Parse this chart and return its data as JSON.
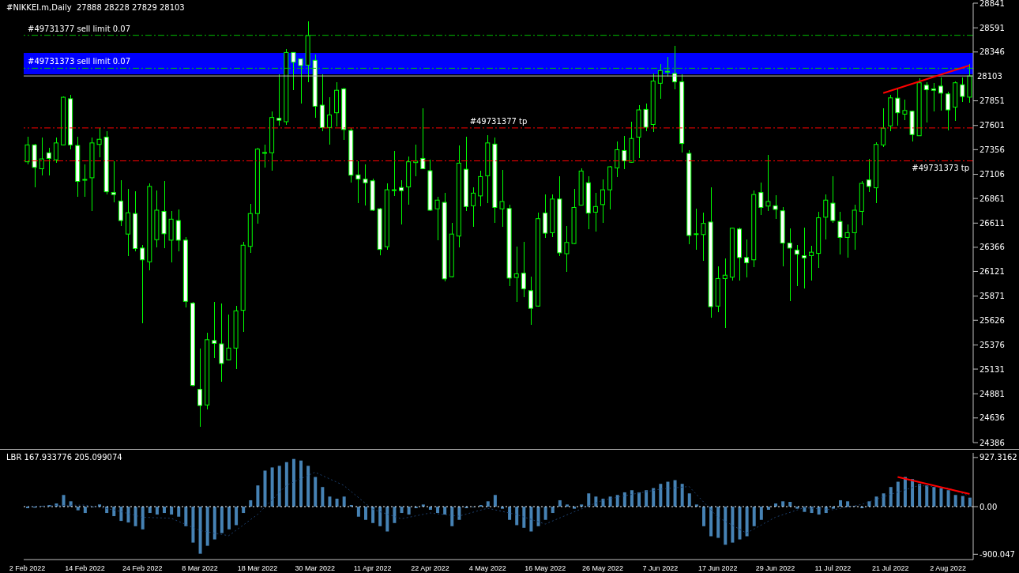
{
  "chart_data": [
    {
      "type": "candlestick",
      "title": "#NIKKEI.m,Daily  27888 28228 27829 28103",
      "color": "#00ff00",
      "tick_labels": "y",
      "categories": [
        null,
        null,
        null,
        null,
        null,
        null,
        null,
        null,
        null,
        null,
        null,
        null,
        null,
        null,
        null,
        null,
        null,
        null,
        null,
        null,
        null,
        null,
        null,
        null,
        null,
        null,
        null,
        null,
        null,
        null,
        null,
        null,
        null,
        null,
        null,
        null,
        null,
        null,
        null,
        null,
        null,
        null,
        null,
        null,
        null,
        null,
        null,
        null,
        null,
        null,
        null,
        null,
        null,
        null,
        null,
        null,
        null,
        null,
        null,
        null,
        null,
        null,
        null,
        null,
        null,
        null,
        null,
        null,
        null,
        null,
        null,
        null,
        null,
        null,
        null,
        null,
        null,
        null,
        null,
        null,
        null,
        null,
        null,
        null,
        null,
        null,
        null,
        null,
        null,
        null,
        null,
        null,
        null,
        null,
        null,
        null,
        null,
        null,
        null,
        null,
        null,
        null,
        null,
        null,
        null,
        null,
        null,
        null,
        null,
        null,
        null,
        null,
        null,
        null,
        null,
        null,
        null,
        null,
        null,
        null,
        null,
        null,
        null,
        null,
        null,
        null,
        null,
        null,
        null,
        null,
        null,
        null
      ],
      "ohlc": [
        [
          27233,
          27489,
          27205,
          27404
        ],
        [
          27404,
          27418,
          26978,
          27176
        ],
        [
          27162,
          27475,
          27091,
          27262
        ],
        [
          27324,
          27375,
          27097,
          27267
        ],
        [
          27253,
          27480,
          27225,
          27424
        ],
        [
          27404,
          27892,
          27398,
          27887
        ],
        [
          27872,
          27909,
          27361,
          27404
        ],
        [
          27398,
          27489,
          26878,
          27034
        ],
        [
          27054,
          27205,
          26878,
          27054
        ],
        [
          27071,
          27475,
          26736,
          27424
        ],
        [
          27409,
          27574,
          27276,
          27461
        ],
        [
          27483,
          27546,
          26901,
          26929
        ],
        [
          26921,
          27239,
          26821,
          26901
        ],
        [
          26835,
          27049,
          26580,
          26637
        ],
        [
          26500,
          26955,
          26273,
          26716
        ],
        [
          26708,
          26935,
          26324,
          26353
        ],
        [
          26358,
          26387,
          25594,
          26239
        ],
        [
          26219,
          27012,
          26131,
          26983
        ],
        [
          26443,
          26941,
          26367,
          26742
        ],
        [
          26730,
          27040,
          26358,
          26503
        ],
        [
          26438,
          26730,
          26216,
          26651
        ],
        [
          26637,
          26750,
          26324,
          26438
        ],
        [
          26438,
          26466,
          25756,
          25818
        ],
        [
          25799,
          25810,
          24955,
          24966
        ],
        [
          24926,
          25338,
          24548,
          24762
        ],
        [
          24767,
          25500,
          24719,
          25429
        ],
        [
          25421,
          25813,
          25245,
          25392
        ],
        [
          25387,
          25799,
          25003,
          25188
        ],
        [
          25225,
          25685,
          25216,
          25344
        ],
        [
          25344,
          25770,
          25131,
          25722
        ],
        [
          25727,
          26424,
          25506,
          26387
        ],
        [
          26375,
          26807,
          26310,
          26708
        ],
        [
          26708,
          27375,
          26608,
          27361
        ],
        [
          27327,
          27404,
          27176,
          27327
        ],
        [
          27324,
          27745,
          27142,
          27682
        ],
        [
          27674,
          28120,
          27603,
          27654
        ],
        [
          27639,
          28375,
          27611,
          28341
        ],
        [
          28341,
          28347,
          27958,
          28242
        ],
        [
          28276,
          28284,
          27824,
          28208
        ],
        [
          28213,
          28654,
          28043,
          28512
        ],
        [
          28262,
          28318,
          27682,
          27796
        ],
        [
          27807,
          28120,
          27546,
          27580
        ],
        [
          27580,
          27887,
          27409,
          27708
        ],
        [
          27730,
          28037,
          27588,
          27958
        ],
        [
          27972,
          27986,
          27455,
          27560
        ],
        [
          27551,
          27574,
          27020,
          27097
        ],
        [
          27100,
          27239,
          26816,
          27057
        ],
        [
          27057,
          27210,
          26793,
          27020
        ],
        [
          27040,
          27063,
          26736,
          26742
        ],
        [
          26756,
          26764,
          26281,
          26344
        ],
        [
          26372,
          27012,
          26338,
          26949
        ],
        [
          26949,
          27341,
          26884,
          26949
        ],
        [
          26972,
          27049,
          26600,
          26941
        ],
        [
          26978,
          27290,
          26799,
          27233
        ],
        [
          27225,
          27409,
          27085,
          27240
        ],
        [
          27267,
          27773,
          27157,
          27162
        ],
        [
          27142,
          27256,
          26730,
          26742
        ],
        [
          26756,
          26878,
          26438,
          26844
        ],
        [
          26821,
          26921,
          26017,
          26046
        ],
        [
          26068,
          26614,
          26063,
          26500
        ],
        [
          26480,
          27398,
          26367,
          27219
        ],
        [
          27157,
          27489,
          26730,
          26779
        ],
        [
          26787,
          26978,
          26574,
          26915
        ],
        [
          26887,
          27139,
          26779,
          27083
        ],
        [
          27091,
          27503,
          26816,
          27424
        ],
        [
          27412,
          27480,
          26614,
          26770
        ],
        [
          26756,
          27148,
          26574,
          26830
        ],
        [
          26759,
          26801,
          25969,
          26054
        ],
        [
          26060,
          26372,
          25813,
          26097
        ],
        [
          26103,
          26424,
          25861,
          25946
        ],
        [
          25926,
          26068,
          25580,
          25747
        ],
        [
          25770,
          26716,
          25764,
          26656
        ],
        [
          26713,
          26901,
          26458,
          26509
        ],
        [
          26514,
          26901,
          26466,
          26855
        ],
        [
          26855,
          27083,
          26276,
          26310
        ],
        [
          26301,
          26585,
          26120,
          26415
        ],
        [
          26404,
          26960,
          26395,
          26770
        ],
        [
          26793,
          27168,
          26787,
          27139
        ],
        [
          27020,
          27083,
          26546,
          26713
        ],
        [
          26722,
          26915,
          26523,
          26779
        ],
        [
          26799,
          27057,
          26617,
          26949
        ],
        [
          26949,
          27191,
          26750,
          27182
        ],
        [
          27171,
          27438,
          27077,
          27355
        ],
        [
          27347,
          27495,
          27157,
          27242
        ],
        [
          27228,
          27637,
          27219,
          27469
        ],
        [
          27483,
          27807,
          27270,
          27759
        ],
        [
          27764,
          27824,
          27540,
          27583
        ],
        [
          27611,
          28128,
          27532,
          28051
        ],
        [
          28029,
          28222,
          27872,
          28157
        ],
        [
          28148,
          28293,
          28094,
          28150
        ],
        [
          28128,
          28412,
          27966,
          28043
        ],
        [
          28043,
          28120,
          27324,
          27418
        ],
        [
          27318,
          27353,
          26401,
          26486
        ],
        [
          26503,
          26756,
          26338,
          26503
        ],
        [
          26495,
          26716,
          26230,
          26608
        ],
        [
          26622,
          26978,
          25648,
          25764
        ],
        [
          25770,
          26174,
          25705,
          26049
        ],
        [
          26049,
          26253,
          25551,
          26083
        ],
        [
          26063,
          26566,
          26026,
          26560
        ],
        [
          26551,
          26566,
          26031,
          26262
        ],
        [
          26262,
          26443,
          26060,
          26210
        ],
        [
          26239,
          26943,
          26162,
          26901
        ],
        [
          26921,
          27020,
          26693,
          26770
        ],
        [
          26784,
          27304,
          26736,
          26830
        ],
        [
          26787,
          26892,
          26651,
          26750
        ],
        [
          26736,
          26773,
          26176,
          26409
        ],
        [
          26409,
          26557,
          25821,
          26358
        ],
        [
          26338,
          26389,
          25969,
          26296
        ],
        [
          26281,
          26566,
          25949,
          26259
        ],
        [
          26281,
          26381,
          26031,
          26316
        ],
        [
          26304,
          26722,
          26154,
          26665
        ],
        [
          26671,
          26901,
          26443,
          26844
        ],
        [
          26813,
          27083,
          26617,
          26637
        ],
        [
          26628,
          26728,
          26290,
          26466
        ],
        [
          26466,
          26594,
          26262,
          26514
        ],
        [
          26514,
          26799,
          26338,
          26742
        ],
        [
          26730,
          27040,
          26588,
          27014
        ],
        [
          27049,
          27262,
          26929,
          26983
        ],
        [
          26969,
          27432,
          26813,
          27409
        ],
        [
          27404,
          27773,
          27381,
          27574
        ],
        [
          27597,
          27915,
          27540,
          27881
        ],
        [
          27878,
          27978,
          27597,
          27730
        ],
        [
          27716,
          27867,
          27659,
          27753
        ],
        [
          27745,
          27753,
          27441,
          27509
        ],
        [
          27497,
          28077,
          27494,
          28034
        ],
        [
          28009,
          28037,
          27631,
          27963
        ],
        [
          27972,
          28029,
          27745,
          27958
        ],
        [
          28000,
          28091,
          27753,
          27929
        ],
        [
          27921,
          27943,
          27554,
          27759
        ],
        [
          27787,
          28049,
          27645,
          28034
        ],
        [
          28014,
          28086,
          27838,
          27895
        ],
        [
          27888,
          28228,
          27829,
          28103
        ]
      ],
      "series": [
        {
          "type": "line",
          "color": "#ff0000",
          "values": [
            null,
            null,
            null,
            null,
            null,
            null,
            null,
            null,
            null,
            null,
            null,
            null,
            null,
            null,
            null,
            null,
            null,
            null,
            null,
            null,
            null,
            null,
            null,
            null,
            null,
            null,
            null,
            null,
            null,
            null,
            null,
            null,
            null,
            null,
            null,
            null,
            null,
            null,
            null,
            null,
            null,
            null,
            null,
            null,
            null,
            null,
            null,
            null,
            null,
            null,
            null,
            null,
            null,
            null,
            null,
            null,
            null,
            null,
            null,
            null,
            null,
            null,
            null,
            null,
            null,
            null,
            null,
            null,
            null,
            null,
            null,
            null,
            null,
            null,
            null,
            null,
            null,
            null,
            null,
            null,
            null,
            null,
            null,
            null,
            null,
            null,
            null,
            null,
            null,
            null,
            null,
            null,
            null,
            null,
            null,
            null,
            null,
            null,
            null,
            null,
            null,
            null,
            null,
            null,
            null,
            null,
            null,
            null,
            null,
            null,
            null,
            null,
            null,
            null,
            null,
            null,
            null,
            null,
            null,
            27930,
            null,
            null,
            null,
            null,
            null,
            null,
            null,
            null,
            null,
            null,
            null,
            28210
          ]
        }
      ],
      "ylim": [
        24386,
        28841
      ],
      "yticks": [
        28841,
        28591,
        28346,
        27851,
        27601,
        27356,
        27106,
        26861,
        26611,
        26366,
        26121,
        25871,
        25626,
        25376,
        25131,
        24881,
        24636,
        24386
      ],
      "ref_lines": [
        {
          "axis": "y",
          "value": 28515,
          "label": "#49731377 sell limit 0.07",
          "color": "#00c000",
          "line_style": "dashed"
        },
        {
          "axis": "y",
          "value": 28181,
          "label": "#49731373 sell limit 0.07",
          "color": "#00c000",
          "line_style": "dashed"
        },
        {
          "axis": "y",
          "value": 28103,
          "label": "28103",
          "color": "#c0c0c0",
          "line_style": "solid"
        },
        {
          "axis": "y",
          "value": 27576,
          "label": "#49731377 tp",
          "color": "#ff0000",
          "line_style": "dashed"
        },
        {
          "axis": "y",
          "value": 27242,
          "label": "#49731373 tp",
          "color": "#ff0000",
          "line_style": "dashed"
        }
      ],
      "bands": [
        {
          "axis": "y",
          "from": 28117,
          "to": 28340,
          "color": "#0000ff"
        }
      ]
    },
    {
      "type": "bar",
      "title": "LBR 167.933776 205.099074",
      "color": "#4682b4",
      "categories": [
        "2 Feb 2022",
        null,
        null,
        null,
        null,
        null,
        null,
        null,
        "14 Feb 2022",
        null,
        null,
        null,
        null,
        null,
        null,
        null,
        "24 Feb 2022",
        null,
        null,
        null,
        null,
        null,
        null,
        null,
        "8 Mar 2022",
        null,
        null,
        null,
        null,
        null,
        null,
        null,
        "18 Mar 2022",
        null,
        null,
        null,
        null,
        null,
        null,
        null,
        "30 Mar 2022",
        null,
        null,
        null,
        null,
        null,
        null,
        null,
        "11 Apr 2022",
        null,
        null,
        null,
        null,
        null,
        null,
        null,
        "22 Apr 2022",
        null,
        null,
        null,
        null,
        null,
        null,
        null,
        "4 May 2022",
        null,
        null,
        null,
        null,
        null,
        null,
        null,
        "16 May 2022",
        null,
        null,
        null,
        null,
        null,
        null,
        null,
        "26 May 2022",
        null,
        null,
        null,
        null,
        null,
        null,
        null,
        "7 Jun 2022",
        null,
        null,
        null,
        null,
        null,
        null,
        null,
        "17 Jun 2022",
        null,
        null,
        null,
        null,
        null,
        null,
        null,
        "29 Jun 2022",
        null,
        null,
        null,
        null,
        null,
        null,
        null,
        "11 Jul 2022",
        null,
        null,
        null,
        null,
        null,
        null,
        null,
        "21 Jul 2022",
        null,
        null,
        null,
        null,
        null,
        null,
        null,
        "2 Aug 2022",
        null,
        null,
        null
      ],
      "values": [
        -30,
        -20,
        10,
        30,
        60,
        220,
        100,
        -70,
        -120,
        -10,
        40,
        -120,
        -180,
        -270,
        -300,
        -370,
        -430,
        -120,
        -150,
        -120,
        -150,
        -190,
        -370,
        -680,
        -890,
        -740,
        -620,
        -500,
        -430,
        -350,
        -120,
        120,
        400,
        680,
        740,
        770,
        840,
        900,
        870,
        770,
        560,
        370,
        190,
        150,
        190,
        30,
        -190,
        -250,
        -310,
        -370,
        -470,
        -310,
        -120,
        -150,
        -30,
        40,
        -60,
        -120,
        -150,
        -370,
        -250,
        -30,
        -10,
        30,
        100,
        220,
        -40,
        -250,
        -350,
        -400,
        -470,
        -370,
        -250,
        -120,
        120,
        40,
        -40,
        40,
        250,
        190,
        150,
        190,
        220,
        270,
        310,
        270,
        310,
        350,
        430,
        470,
        500,
        430,
        250,
        40,
        -370,
        -560,
        -590,
        -720,
        -680,
        -620,
        -560,
        -370,
        -250,
        -60,
        60,
        100,
        90,
        -40,
        -100,
        -120,
        -150,
        -120,
        -40,
        120,
        100,
        10,
        -30,
        100,
        190,
        250,
        370,
        470,
        560,
        520,
        430,
        400,
        370,
        350,
        310,
        220,
        200,
        170
      ],
      "series": [
        {
          "type": "line",
          "color": "#1c3f6e",
          "line_style": "dotted",
          "values": [
            0,
            null,
            null,
            null,
            20,
            null,
            null,
            null,
            30,
            null,
            null,
            null,
            -60,
            null,
            null,
            null,
            -200,
            null,
            null,
            null,
            -220,
            null,
            null,
            null,
            -450,
            null,
            null,
            null,
            -550,
            null,
            null,
            null,
            -150,
            null,
            null,
            null,
            400,
            null,
            null,
            null,
            650,
            null,
            null,
            null,
            400,
            null,
            null,
            null,
            -50,
            null,
            null,
            null,
            -230,
            null,
            null,
            null,
            -120,
            null,
            null,
            null,
            -180,
            null,
            null,
            null,
            -30,
            null,
            null,
            null,
            -150,
            null,
            null,
            null,
            -330,
            null,
            null,
            null,
            -100,
            null,
            null,
            null,
            120,
            null,
            null,
            null,
            230,
            null,
            null,
            null,
            330,
            null,
            null,
            null,
            380,
            null,
            null,
            null,
            -200,
            null,
            null,
            null,
            -500,
            null,
            null,
            null,
            -200,
            null,
            null,
            null,
            -20,
            null,
            null,
            null,
            -60,
            null,
            null,
            null,
            40,
            null,
            null,
            null,
            230,
            null,
            null,
            null,
            400,
            null,
            null,
            null,
            350,
            null,
            null,
            200
          ]
        },
        {
          "type": "line",
          "color": "#ff0000",
          "values": [
            null,
            null,
            null,
            null,
            null,
            null,
            null,
            null,
            null,
            null,
            null,
            null,
            null,
            null,
            null,
            null,
            null,
            null,
            null,
            null,
            null,
            null,
            null,
            null,
            null,
            null,
            null,
            null,
            null,
            null,
            null,
            null,
            null,
            null,
            null,
            null,
            null,
            null,
            null,
            null,
            null,
            null,
            null,
            null,
            null,
            null,
            null,
            null,
            null,
            null,
            null,
            null,
            null,
            null,
            null,
            null,
            null,
            null,
            null,
            null,
            null,
            null,
            null,
            null,
            null,
            null,
            null,
            null,
            null,
            null,
            null,
            null,
            null,
            null,
            null,
            null,
            null,
            null,
            null,
            null,
            null,
            null,
            null,
            null,
            null,
            null,
            null,
            null,
            null,
            null,
            null,
            null,
            null,
            null,
            null,
            null,
            null,
            null,
            null,
            null,
            null,
            null,
            null,
            null,
            null,
            null,
            null,
            null,
            null,
            null,
            null,
            null,
            null,
            null,
            null,
            null,
            null,
            null,
            null,
            null,
            null,
            560,
            null,
            null,
            null,
            null,
            null,
            null,
            null,
            null,
            null,
            240
          ]
        }
      ],
      "ylim": [
        -1000,
        1015
      ],
      "yticks": [
        {
          "value": 927.3162,
          "label": "927.3162"
        },
        {
          "value": 0,
          "label": "0.00"
        },
        {
          "value": -900.047,
          "label": "-900.047"
        }
      ],
      "ref_lines": [
        {
          "axis": "y",
          "value": 0,
          "color": "#ffffff",
          "line_style": "dotted"
        }
      ]
    }
  ]
}
